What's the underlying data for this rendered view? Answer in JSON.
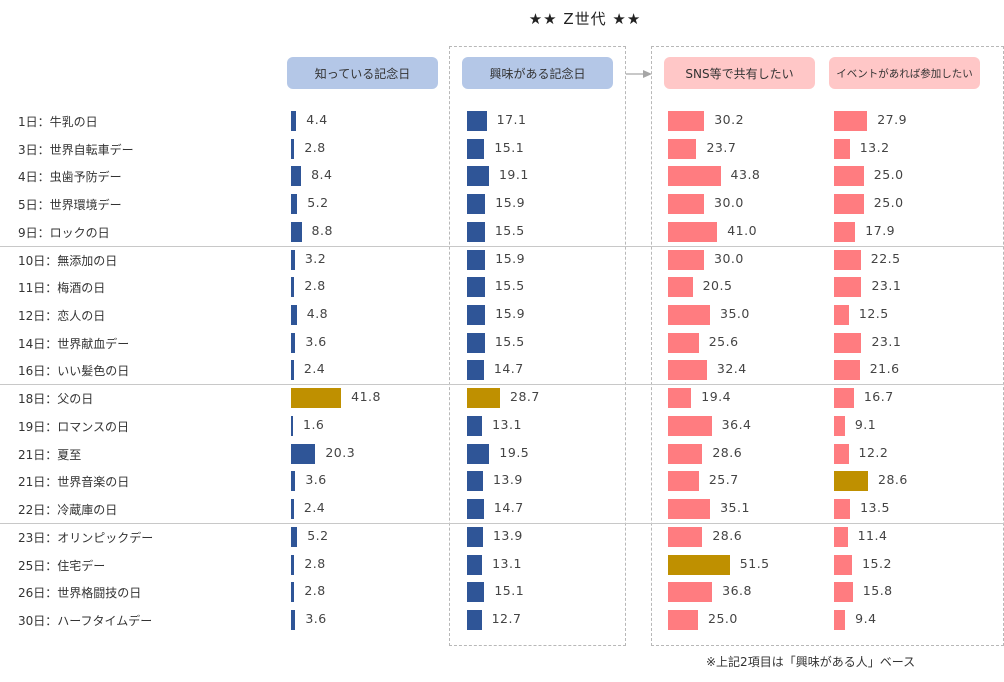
{
  "chart_data": {
    "type": "bar",
    "title": "★★ Z世代 ★★",
    "orientation": "horizontal",
    "xlabel": "",
    "ylabel": "",
    "grid": false,
    "categories": [
      "1日：牛乳の日",
      "3日：世界自転車デー",
      "4日：虫歯予防デー",
      "5日：世界環境デー",
      "9日：ロックの日",
      "10日：無添加の日",
      "11日：梅酒の日",
      "12日：恋人の日",
      "14日：世界献血デー",
      "16日：いい髪色の日",
      "18日：父の日",
      "19日：ロマンスの日",
      "21日：夏至",
      "21日：世界音楽の日",
      "22日：冷蔵庫の日",
      "23日：オリンピックデー",
      "25日：住宅デー",
      "26日：世界格闘技の日",
      "30日：ハーフタイムデー"
    ],
    "groups_separator_after": [
      4,
      9,
      14
    ],
    "series": [
      {
        "name": "知っている記念日",
        "color": "#2f5597",
        "header_color": "#b4c7e7",
        "values": [
          4.4,
          2.8,
          8.4,
          5.2,
          8.8,
          3.2,
          2.8,
          4.8,
          3.6,
          2.4,
          41.8,
          1.6,
          20.3,
          3.6,
          2.4,
          5.2,
          2.8,
          2.8,
          3.6
        ],
        "highlight_index": [
          10
        ]
      },
      {
        "name": "興味がある記念日",
        "color": "#2f5597",
        "header_color": "#b4c7e7",
        "values": [
          17.1,
          15.1,
          19.1,
          15.9,
          15.5,
          15.9,
          15.5,
          15.9,
          15.5,
          14.7,
          28.7,
          13.1,
          19.5,
          13.9,
          14.7,
          13.9,
          13.1,
          15.1,
          12.7
        ],
        "highlight_index": [
          10
        ]
      },
      {
        "name": "SNS等で共有したい",
        "color": "#ff7c80",
        "header_color": "#ffc7c7",
        "values": [
          30.2,
          23.7,
          43.8,
          30.0,
          41.0,
          30.0,
          20.5,
          35.0,
          25.6,
          32.4,
          19.4,
          36.4,
          28.6,
          25.7,
          35.1,
          28.6,
          51.5,
          36.8,
          25.0
        ],
        "highlight_index": [
          16
        ]
      },
      {
        "name": "イベントがあれば参加したい",
        "color": "#ff7c80",
        "header_color": "#ffc7c7",
        "values": [
          27.9,
          13.2,
          25.0,
          25.0,
          17.9,
          22.5,
          23.1,
          12.5,
          23.1,
          21.6,
          16.7,
          9.1,
          12.2,
          28.6,
          13.5,
          11.4,
          15.2,
          15.8,
          9.4
        ],
        "highlight_index": [
          13
        ]
      }
    ],
    "highlight_color": "#bf9000",
    "value_format": "0.0",
    "footnote": "※上記2項目は「興味がある人」ベース"
  }
}
